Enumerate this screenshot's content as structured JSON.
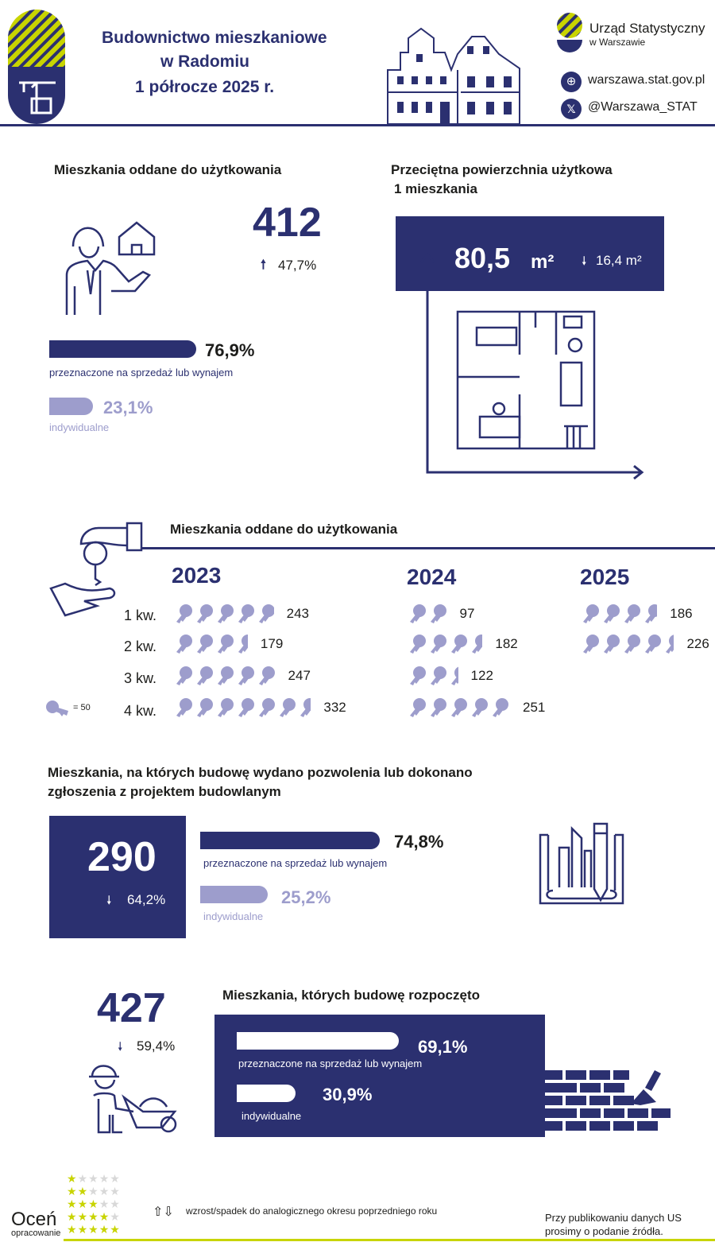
{
  "header": {
    "title_line1": "Budownictwo mieszkaniowe",
    "title_line2": "w Radomiu",
    "title_line3": "1 półrocze 2025 r.",
    "org_name": "Urząd Statystyczny",
    "org_sub": "w Warszawie",
    "website": "warszawa.stat.gov.pl",
    "x_handle": "@Warszawa_STAT"
  },
  "colors": {
    "navy": "#2b3070",
    "lavender": "#9d9dcc",
    "green": "#c8d400"
  },
  "completed": {
    "title": "Mieszkania oddane do użytkowania",
    "total": "412",
    "change": "47,7%",
    "change_dir": "up",
    "sale_pct": "76,9%",
    "sale_value": 76.9,
    "sale_label": "przeznaczone na sprzedaż lub wynajem",
    "indiv_pct": "23,1%",
    "indiv_value": 23.1,
    "indiv_label": "indywidualne"
  },
  "area": {
    "title_line1": "Przeciętna powierzchnia użytkowa",
    "title_line2": "1 mieszkania",
    "value": "80,5",
    "unit": "m²",
    "change": "16,4 m²",
    "change_dir": "down"
  },
  "quarterly": {
    "title": "Mieszkania oddane do użytkowania",
    "legend": "= 50",
    "quarter_labels": [
      "1 kw.",
      "2 kw.",
      "3 kw.",
      "4 kw."
    ],
    "years": [
      {
        "year": "2023",
        "values": [
          "243",
          "179",
          "247",
          "332"
        ]
      },
      {
        "year": "2024",
        "values": [
          "97",
          "182",
          "122",
          "251"
        ]
      },
      {
        "year": "2025",
        "values": [
          "186",
          "226"
        ]
      }
    ]
  },
  "permits": {
    "title_line1": "Mieszkania, na których budowę wydano pozwolenia lub dokonano",
    "title_line2": "zgłoszenia z projektem budowlanym",
    "total": "290",
    "change": "64,2%",
    "change_dir": "down",
    "sale_pct": "74,8%",
    "sale_value": 74.8,
    "sale_label": "przeznaczone na sprzedaż lub wynajem",
    "indiv_pct": "25,2%",
    "indiv_value": 25.2,
    "indiv_label": "indywidualne"
  },
  "started": {
    "title": "Mieszkania, których budowę rozpoczęto",
    "total": "427",
    "change": "59,4%",
    "change_dir": "down",
    "sale_pct": "69,1%",
    "sale_value": 69.1,
    "sale_label": "przeznaczone na sprzedaż lub wynajem",
    "indiv_pct": "30,9%",
    "indiv_value": 30.9,
    "indiv_label": "indywidualne"
  },
  "footer": {
    "rate_title": "Oceń",
    "rate_sub": "opracowanie",
    "legend_text": "wzrost/spadek do analogicznego okresu poprzedniego roku",
    "note_line1": "Przy publikowaniu danych US",
    "note_line2": "prosimy o podanie źródła."
  }
}
